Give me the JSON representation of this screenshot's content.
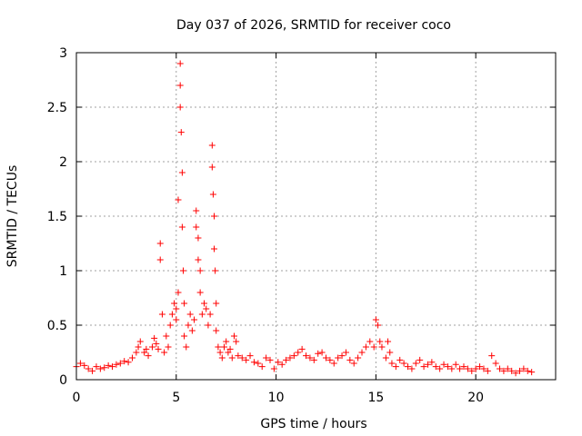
{
  "chart_data": {
    "type": "scatter",
    "title": "Day 037 of 2026, SRMTID for receiver coco",
    "xlabel": "GPS time / hours",
    "ylabel": "SRMTID / TECUs",
    "xlim": [
      0,
      24
    ],
    "ylim": [
      0,
      3
    ],
    "x_ticks": [
      0,
      5,
      10,
      15,
      20
    ],
    "x_tick_labels": [
      "0",
      "5",
      "10",
      "15",
      "20"
    ],
    "y_ticks": [
      0,
      0.5,
      1,
      1.5,
      2,
      2.5,
      3
    ],
    "y_tick_labels": [
      "0",
      "0.5",
      "1",
      "1.5",
      "2",
      "2.5",
      "3"
    ],
    "grid": true,
    "marker": "+",
    "color": "#ff0000",
    "series": [
      {
        "name": "SRMTID",
        "x": [
          0.0,
          0.2,
          0.4,
          0.6,
          0.8,
          1.0,
          1.2,
          1.4,
          1.6,
          1.8,
          2.0,
          2.2,
          2.4,
          2.6,
          2.8,
          3.0,
          3.1,
          3.2,
          3.4,
          3.5,
          3.6,
          3.8,
          3.9,
          4.0,
          4.1,
          4.2,
          4.2,
          4.3,
          4.4,
          4.5,
          4.6,
          4.7,
          4.8,
          4.9,
          5.0,
          5.0,
          5.1,
          5.1,
          5.2,
          5.2,
          5.2,
          5.25,
          5.3,
          5.3,
          5.35,
          5.4,
          5.4,
          5.5,
          5.6,
          5.7,
          5.8,
          5.9,
          6.0,
          6.0,
          6.1,
          6.1,
          6.2,
          6.2,
          6.3,
          6.4,
          6.5,
          6.6,
          6.7,
          6.8,
          6.8,
          6.85,
          6.9,
          6.9,
          6.95,
          7.0,
          7.0,
          7.1,
          7.2,
          7.3,
          7.4,
          7.5,
          7.6,
          7.7,
          7.8,
          7.9,
          8.0,
          8.1,
          8.3,
          8.5,
          8.7,
          8.9,
          9.1,
          9.3,
          9.5,
          9.7,
          9.9,
          10.1,
          10.3,
          10.5,
          10.7,
          10.9,
          11.1,
          11.3,
          11.5,
          11.7,
          11.9,
          12.1,
          12.3,
          12.5,
          12.7,
          12.9,
          13.1,
          13.3,
          13.5,
          13.7,
          13.9,
          14.1,
          14.3,
          14.5,
          14.7,
          14.9,
          15.0,
          15.1,
          15.2,
          15.3,
          15.5,
          15.6,
          15.7,
          15.8,
          16.0,
          16.2,
          16.4,
          16.6,
          16.8,
          17.0,
          17.2,
          17.4,
          17.6,
          17.8,
          18.0,
          18.2,
          18.4,
          18.6,
          18.8,
          19.0,
          19.2,
          19.4,
          19.6,
          19.8,
          20.0,
          20.2,
          20.4,
          20.6,
          20.8,
          21.0,
          21.2,
          21.4,
          21.6,
          21.8,
          22.0,
          22.2,
          22.4,
          22.6,
          22.8
        ],
        "y": [
          0.12,
          0.15,
          0.13,
          0.1,
          0.08,
          0.12,
          0.1,
          0.11,
          0.13,
          0.12,
          0.14,
          0.15,
          0.17,
          0.16,
          0.2,
          0.25,
          0.3,
          0.35,
          0.25,
          0.28,
          0.22,
          0.3,
          0.38,
          0.33,
          0.28,
          1.25,
          1.1,
          0.6,
          0.25,
          0.4,
          0.3,
          0.5,
          0.6,
          0.7,
          0.65,
          0.55,
          0.8,
          1.65,
          2.9,
          2.7,
          2.5,
          2.27,
          1.9,
          1.4,
          1.0,
          0.7,
          0.4,
          0.3,
          0.5,
          0.6,
          0.45,
          0.55,
          1.55,
          1.4,
          1.3,
          1.1,
          1.0,
          0.8,
          0.6,
          0.7,
          0.65,
          0.5,
          0.6,
          2.15,
          1.95,
          1.7,
          1.5,
          1.2,
          1.0,
          0.7,
          0.45,
          0.3,
          0.25,
          0.2,
          0.3,
          0.35,
          0.25,
          0.28,
          0.2,
          0.4,
          0.35,
          0.22,
          0.2,
          0.18,
          0.22,
          0.16,
          0.15,
          0.12,
          0.2,
          0.18,
          0.1,
          0.16,
          0.14,
          0.18,
          0.2,
          0.22,
          0.25,
          0.28,
          0.22,
          0.2,
          0.18,
          0.24,
          0.25,
          0.2,
          0.18,
          0.15,
          0.2,
          0.22,
          0.25,
          0.18,
          0.15,
          0.2,
          0.25,
          0.3,
          0.35,
          0.3,
          0.55,
          0.5,
          0.35,
          0.3,
          0.2,
          0.35,
          0.25,
          0.15,
          0.12,
          0.18,
          0.15,
          0.12,
          0.1,
          0.15,
          0.18,
          0.12,
          0.14,
          0.16,
          0.12,
          0.1,
          0.14,
          0.12,
          0.1,
          0.14,
          0.1,
          0.12,
          0.1,
          0.08,
          0.1,
          0.12,
          0.1,
          0.08,
          0.22,
          0.15,
          0.1,
          0.08,
          0.1,
          0.08,
          0.06,
          0.08,
          0.1,
          0.08,
          0.07
        ]
      }
    ]
  }
}
